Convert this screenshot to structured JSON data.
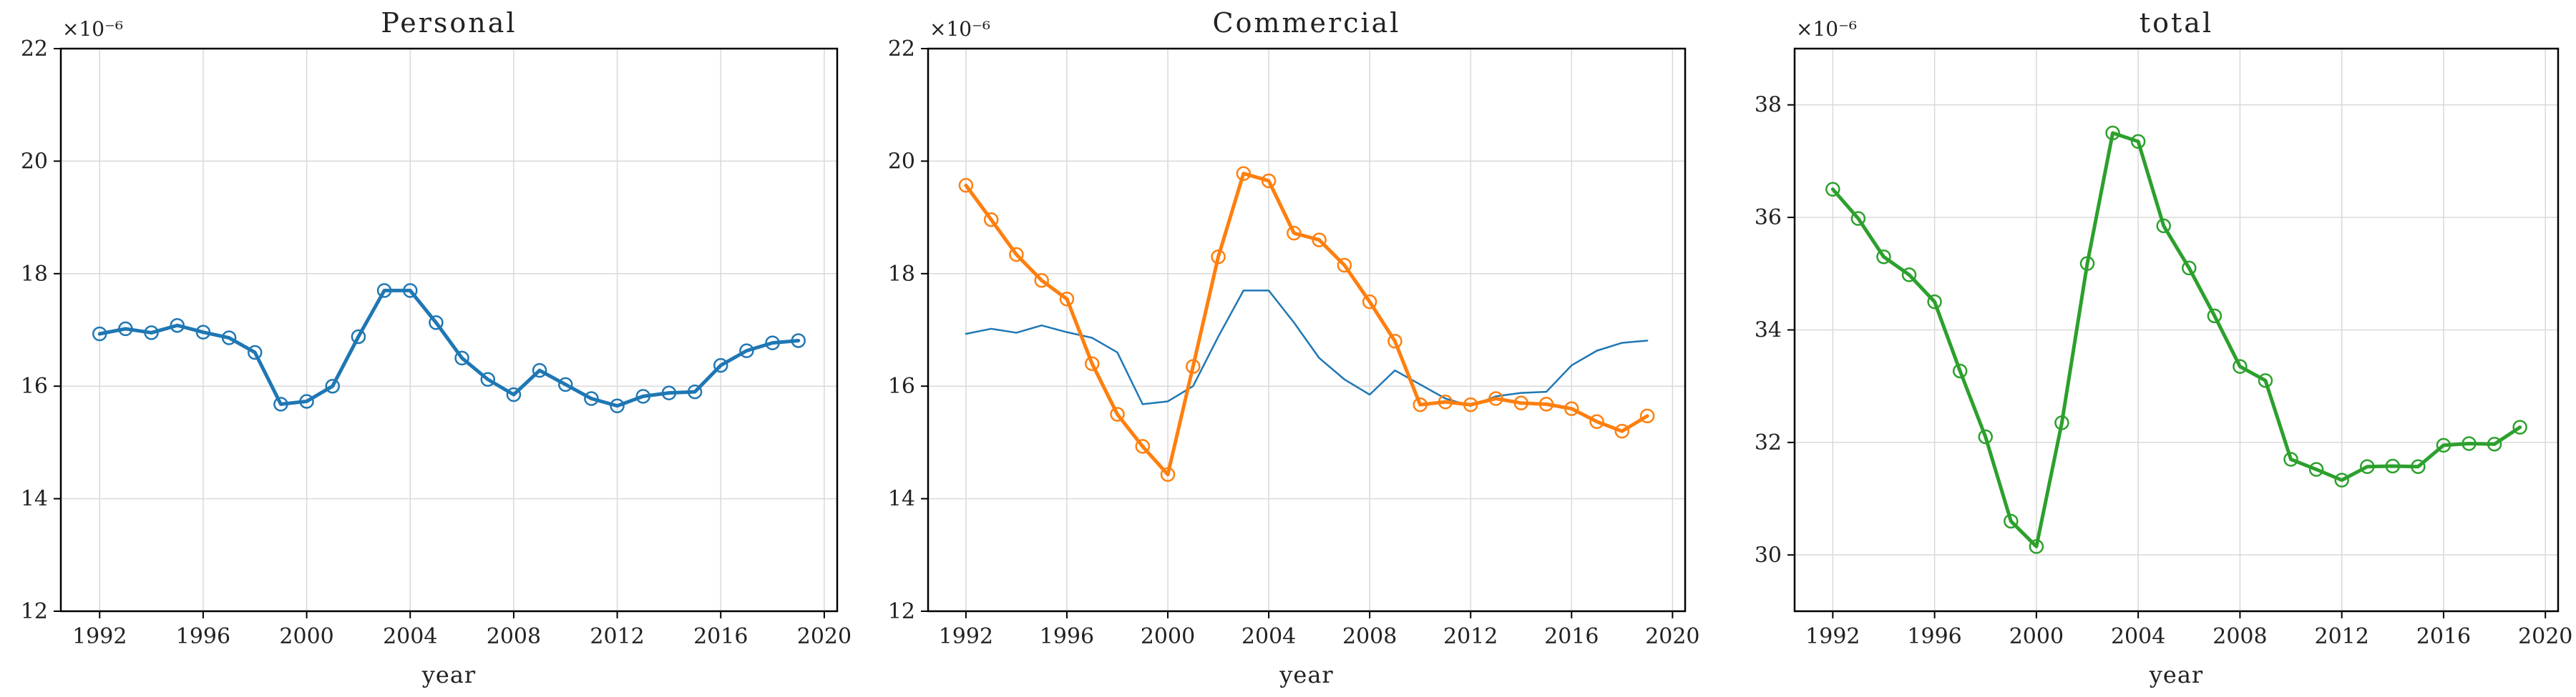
{
  "colors": {
    "personal": "#1f77b4",
    "commercial": "#ff7f0e",
    "total": "#2ca02c",
    "grid": "#d9d9d9",
    "axis": "#000000"
  },
  "chart_data": [
    {
      "type": "line",
      "title": "Personal",
      "xlabel": "year",
      "ylabel": "",
      "y_offset_label": "×10⁻⁶",
      "xlim": [
        1990.5,
        2020.5
      ],
      "ylim": [
        12,
        22
      ],
      "xticks": [
        1992,
        1996,
        2000,
        2004,
        2008,
        2012,
        2016,
        2020
      ],
      "yticks": [
        12,
        14,
        16,
        18,
        20,
        22
      ],
      "grid": true,
      "x": [
        1992,
        1993,
        1994,
        1995,
        1996,
        1997,
        1998,
        1999,
        2000,
        2001,
        2002,
        2003,
        2004,
        2005,
        2006,
        2007,
        2008,
        2009,
        2010,
        2011,
        2012,
        2013,
        2014,
        2015,
        2016,
        2017,
        2018,
        2019
      ],
      "series": [
        {
          "color": "#1f77b4",
          "markers": true,
          "linewidth": "thick",
          "values": [
            16.93,
            17.02,
            16.95,
            17.08,
            16.96,
            16.86,
            16.6,
            15.68,
            15.73,
            16.0,
            16.88,
            17.7,
            17.7,
            17.13,
            16.5,
            16.12,
            15.85,
            16.28,
            16.03,
            15.78,
            15.65,
            15.82,
            15.88,
            15.9,
            16.37,
            16.63,
            16.77,
            16.81
          ]
        }
      ]
    },
    {
      "type": "line",
      "title": "Commercial",
      "xlabel": "year",
      "ylabel": "",
      "y_offset_label": "×10⁻⁶",
      "xlim": [
        1990.5,
        2020.5
      ],
      "ylim": [
        12,
        22
      ],
      "xticks": [
        1992,
        1996,
        2000,
        2004,
        2008,
        2012,
        2016,
        2020
      ],
      "yticks": [
        12,
        14,
        16,
        18,
        20,
        22
      ],
      "grid": true,
      "x": [
        1992,
        1993,
        1994,
        1995,
        1996,
        1997,
        1998,
        1999,
        2000,
        2001,
        2002,
        2003,
        2004,
        2005,
        2006,
        2007,
        2008,
        2009,
        2010,
        2011,
        2012,
        2013,
        2014,
        2015,
        2016,
        2017,
        2018,
        2019
      ],
      "series": [
        {
          "color": "#1f77b4",
          "markers": false,
          "linewidth": "thin",
          "values": [
            16.93,
            17.02,
            16.95,
            17.08,
            16.96,
            16.86,
            16.6,
            15.68,
            15.73,
            16.0,
            16.88,
            17.7,
            17.7,
            17.13,
            16.5,
            16.12,
            15.85,
            16.28,
            16.03,
            15.78,
            15.65,
            15.82,
            15.88,
            15.9,
            16.37,
            16.63,
            16.77,
            16.81
          ]
        },
        {
          "color": "#ff7f0e",
          "markers": true,
          "linewidth": "thick",
          "values": [
            19.57,
            18.96,
            18.34,
            17.88,
            17.55,
            16.4,
            15.5,
            14.93,
            14.43,
            16.35,
            18.3,
            19.78,
            19.65,
            18.72,
            18.6,
            18.15,
            17.5,
            16.8,
            15.67,
            15.72,
            15.67,
            15.78,
            15.7,
            15.68,
            15.6,
            15.37,
            15.2,
            15.47
          ]
        }
      ]
    },
    {
      "type": "line",
      "title": "total",
      "xlabel": "year",
      "ylabel": "",
      "y_offset_label": "×10⁻⁶",
      "xlim": [
        1990.5,
        2020.5
      ],
      "ylim": [
        29,
        39
      ],
      "xticks": [
        1992,
        1996,
        2000,
        2004,
        2008,
        2012,
        2016,
        2020
      ],
      "yticks": [
        30,
        32,
        34,
        36,
        38
      ],
      "grid": true,
      "x": [
        1992,
        1993,
        1994,
        1995,
        1996,
        1997,
        1998,
        1999,
        2000,
        2001,
        2002,
        2003,
        2004,
        2005,
        2006,
        2007,
        2008,
        2009,
        2010,
        2011,
        2012,
        2013,
        2014,
        2015,
        2016,
        2017,
        2018,
        2019
      ],
      "series": [
        {
          "color": "#2ca02c",
          "markers": true,
          "linewidth": "thick",
          "values": [
            36.5,
            35.98,
            35.3,
            34.98,
            34.5,
            33.27,
            32.1,
            30.6,
            30.15,
            32.35,
            35.18,
            37.5,
            37.35,
            35.85,
            35.1,
            34.25,
            33.35,
            33.1,
            31.7,
            31.52,
            31.33,
            31.57,
            31.58,
            31.57,
            31.95,
            31.98,
            31.97,
            32.27
          ]
        }
      ]
    }
  ]
}
